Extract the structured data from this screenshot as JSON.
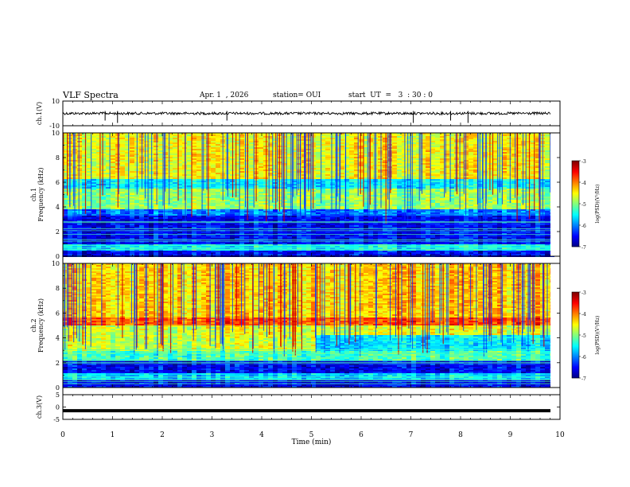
{
  "header": {
    "title": "VLF Spectra",
    "date": "Apr. 1  , 2026",
    "station": "station= OUI",
    "start": "start  UT  =   3  : 30 : 0"
  },
  "chart_data": [
    {
      "type": "line",
      "name": "ch1-waveform",
      "ylabel": "ch.1(V)",
      "ylim": [
        -10,
        10
      ],
      "yticks": [
        "10",
        "-10"
      ],
      "xlim": [
        0,
        10
      ],
      "baseline": 0,
      "spikes_min": [
        0.85,
        1.1,
        3.3,
        7.05,
        7.8,
        8.15
      ]
    },
    {
      "type": "heatmap",
      "name": "ch1-spectrogram",
      "ylabel": "ch.1\nFrequency (kHz)",
      "ylim": [
        0,
        10
      ],
      "yticks": [
        "0",
        "2",
        "4",
        "6",
        "8",
        "10"
      ],
      "xlim": [
        0,
        9.8
      ],
      "colorbar": {
        "label": "log(PSD)(V²/Hz)",
        "range": [
          -7,
          -3
        ],
        "ticks": [
          "-3",
          "-4",
          "-5",
          "-6",
          "-7"
        ]
      },
      "bands": [
        {
          "f": [
            0,
            0.5
          ],
          "level": -6.5
        },
        {
          "f": [
            0.5,
            1.0
          ],
          "level": -5.5
        },
        {
          "f": [
            1.0,
            3.3
          ],
          "level": -6.5
        },
        {
          "f": [
            3.3,
            3.8
          ],
          "level": -6.0
        },
        {
          "f": [
            3.8,
            5.5
          ],
          "level": -4.9
        },
        {
          "f": [
            5.5,
            6.3
          ],
          "level": -5.5
        },
        {
          "f": [
            6.3,
            10.0
          ],
          "level": -4.5
        }
      ]
    },
    {
      "type": "heatmap",
      "name": "ch2-spectrogram",
      "ylabel": "ch.2\nFrequency (kHz)",
      "ylim": [
        0,
        10
      ],
      "yticks": [
        "0",
        "2",
        "4",
        "6",
        "8",
        "10"
      ],
      "xlim": [
        0,
        9.8
      ],
      "colorbar": {
        "label": "log(PSD)(V²/Hz)",
        "range": [
          -7,
          -3
        ],
        "ticks": [
          "-3",
          "-4",
          "-5",
          "-6",
          "-7"
        ]
      },
      "bands": [
        {
          "f": [
            0,
            0.6
          ],
          "level": -6.5
        },
        {
          "f": [
            0.6,
            1.2
          ],
          "level": -5.6
        },
        {
          "f": [
            1.2,
            2.2
          ],
          "level": -6.5
        },
        {
          "f": [
            2.2,
            3.0
          ],
          "level": -5.2
        },
        {
          "f": [
            3.0,
            4.0
          ],
          "level": -4.7
        },
        {
          "f": [
            4.0,
            5.0
          ],
          "level": -4.6
        },
        {
          "f": [
            5.0,
            5.6
          ],
          "level": -3.8
        },
        {
          "f": [
            5.6,
            10.0
          ],
          "level": -4.3
        }
      ]
    },
    {
      "type": "line",
      "name": "ch3-waveform",
      "ylabel": "ch.3(V)",
      "ylim": [
        -5,
        5
      ],
      "yticks": [
        "5",
        "0",
        "-5"
      ],
      "xlim": [
        0,
        10
      ],
      "baseline": -1.5,
      "xlabel": "Time  (min)",
      "xticks": [
        "0",
        "1",
        "2",
        "3",
        "4",
        "5",
        "6",
        "7",
        "8",
        "9",
        "10"
      ]
    }
  ]
}
